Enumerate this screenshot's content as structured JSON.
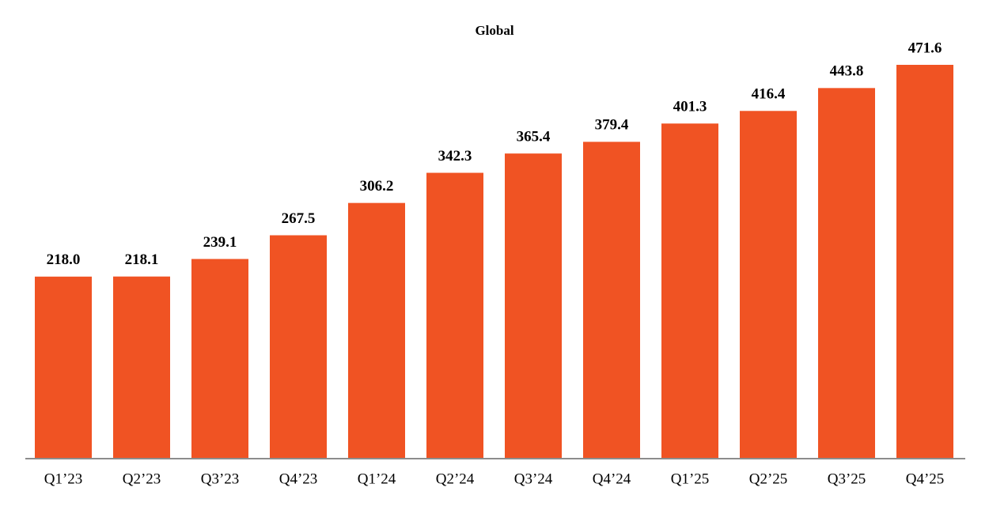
{
  "chart_data": {
    "type": "bar",
    "title": "Global",
    "categories": [
      "Q1’23",
      "Q2’23",
      "Q3’23",
      "Q4’23",
      "Q1’24",
      "Q2’24",
      "Q3’24",
      "Q4’24",
      "Q1’25",
      "Q2’25",
      "Q3’25",
      "Q4’25"
    ],
    "values": [
      218.0,
      218.1,
      239.1,
      267.5,
      306.2,
      342.3,
      365.4,
      379.4,
      401.3,
      416.4,
      443.8,
      471.6
    ],
    "value_labels": [
      "218.0",
      "218.1",
      "239.1",
      "267.5",
      "306.2",
      "342.3",
      "365.4",
      "379.4",
      "401.3",
      "416.4",
      "443.8",
      "471.6"
    ],
    "color": "#f05323",
    "ylim": [
      0,
      500
    ]
  }
}
